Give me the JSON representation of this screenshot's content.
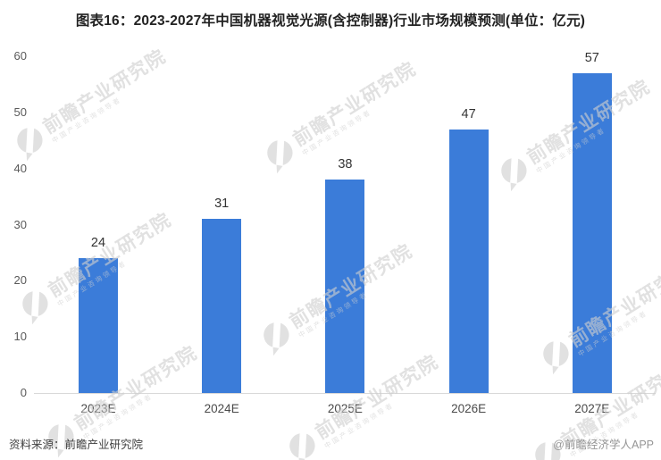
{
  "title": "图表16：2023-2027年中国机器视觉光源(含控制器)行业市场规模预测(单位：亿元)",
  "chart_data": {
    "type": "bar",
    "categories": [
      "2023E",
      "2024E",
      "2025E",
      "2026E",
      "2027E"
    ],
    "values": [
      24,
      31,
      38,
      47,
      57
    ],
    "unit": "亿元",
    "ylim": [
      0,
      60
    ],
    "yticks": [
      0,
      10,
      20,
      30,
      40,
      50,
      60
    ],
    "grid": false,
    "legend": "none",
    "bar_color": "#3b7cd9",
    "value_labels_shown": true
  },
  "watermark": {
    "text": "前瞻产业研究院",
    "subtext": "中国产业咨询领导者",
    "icon": "magnifier-logo-icon",
    "color": "#cfcfcf"
  },
  "footer": {
    "source": "资料来源：前瞻产业研究院",
    "credit": "@前瞻经济学人APP"
  }
}
